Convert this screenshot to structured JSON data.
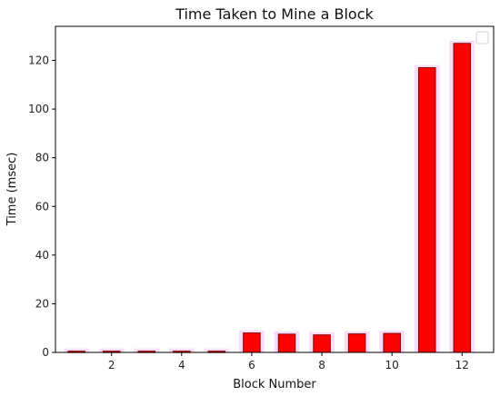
{
  "chart_data": {
    "type": "bar",
    "title": "Time Taken to Mine a Block",
    "xlabel": "Block Number",
    "ylabel": "Time (msec)",
    "x": [
      1,
      2,
      3,
      4,
      5,
      6,
      7,
      8,
      9,
      10,
      11,
      12
    ],
    "values": [
      0.5,
      0.5,
      0.5,
      0.5,
      0.5,
      8,
      7.5,
      7.2,
      7.6,
      7.8,
      117,
      127
    ],
    "xlim": [
      0.4,
      12.9
    ],
    "ylim": [
      0,
      134
    ],
    "xticks": [
      2,
      4,
      6,
      8,
      10,
      12
    ],
    "yticks": [
      0,
      20,
      40,
      60,
      80,
      100,
      120
    ],
    "bar_color": "#ff0000",
    "bar_edge_color": "#8b0000",
    "glow_color": "#f7ddf7",
    "grid": false,
    "legend": "top-right",
    "legend_entries": []
  }
}
